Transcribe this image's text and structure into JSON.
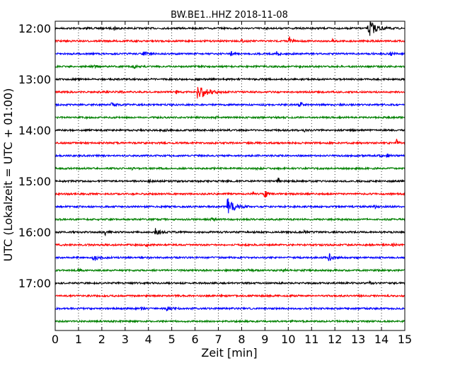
{
  "chart_data": {
    "type": "line",
    "title": "BW.BE1..HHZ 2018-11-08",
    "xlabel": "Zeit  [min]",
    "ylabel": "UTC (Lokalzeit = UTC + 01:00)",
    "xlim": [
      0,
      15
    ],
    "x_ticks": [
      0,
      1,
      2,
      3,
      4,
      5,
      6,
      7,
      8,
      9,
      10,
      11,
      12,
      13,
      14,
      15
    ],
    "grid": "vertical-dotted",
    "row_minutes": 15,
    "start": "12:00",
    "y_tick_labels": [
      "12:00",
      "13:00",
      "14:00",
      "15:00",
      "16:00",
      "17:00"
    ],
    "series_colors": [
      "#000000",
      "#ff0000",
      "#0000ff",
      "#008000"
    ],
    "rows": [
      {
        "time": "12:00",
        "color": "#000000",
        "events": [
          {
            "t": 1.3,
            "a": 0.15
          },
          {
            "t": 2.55,
            "a": 0.3
          },
          {
            "t": 13.45,
            "a": 1.0,
            "d": 0.8
          }
        ]
      },
      {
        "time": "12:15",
        "color": "#ff0000",
        "events": [
          {
            "t": 10.05,
            "a": 0.6
          },
          {
            "t": 11.9,
            "a": 0.25
          },
          {
            "t": 8.0,
            "a": 0.12
          }
        ]
      },
      {
        "time": "12:30",
        "color": "#0000ff",
        "events": [
          {
            "t": 3.8,
            "a": 0.25,
            "d": 0.4
          },
          {
            "t": 7.55,
            "a": 0.3
          },
          {
            "t": 9.5,
            "a": 0.4
          },
          {
            "t": 14.4,
            "a": 0.25
          }
        ]
      },
      {
        "time": "12:45",
        "color": "#008000",
        "events": [
          {
            "t": 1.7,
            "a": 0.15
          },
          {
            "t": 3.4,
            "a": 0.15
          },
          {
            "t": 10.5,
            "a": 0.12
          }
        ]
      },
      {
        "time": "13:00",
        "color": "#000000",
        "events": []
      },
      {
        "time": "13:15",
        "color": "#ff0000",
        "events": [
          {
            "t": 6.1,
            "a": 1.0,
            "d": 0.9
          },
          {
            "t": 5.2,
            "a": 0.2
          },
          {
            "t": 2.8,
            "a": 0.12
          }
        ]
      },
      {
        "time": "13:30",
        "color": "#0000ff",
        "events": [
          {
            "t": 10.5,
            "a": 0.6
          },
          {
            "t": 2.4,
            "a": 0.15,
            "d": 0.5
          },
          {
            "t": 9.8,
            "a": 0.12
          }
        ]
      },
      {
        "time": "13:45",
        "color": "#008000",
        "events": [
          {
            "t": 6.9,
            "a": 0.12
          },
          {
            "t": 1.3,
            "a": 0.1
          }
        ]
      },
      {
        "time": "14:00",
        "color": "#000000",
        "events": [
          {
            "t": 4.5,
            "a": 0.12,
            "d": 0.6
          },
          {
            "t": 10.7,
            "a": 0.15
          }
        ]
      },
      {
        "time": "14:15",
        "color": "#ff0000",
        "events": [
          {
            "t": 14.65,
            "a": 0.4
          }
        ]
      },
      {
        "time": "14:30",
        "color": "#0000ff",
        "events": [
          {
            "t": 14.25,
            "a": 0.3
          },
          {
            "t": 13.9,
            "a": 0.12
          }
        ]
      },
      {
        "time": "14:45",
        "color": "#008000",
        "events": [
          {
            "t": 8.6,
            "a": 0.15
          },
          {
            "t": 3.3,
            "a": 0.1
          }
        ]
      },
      {
        "time": "15:00",
        "color": "#000000",
        "events": [
          {
            "t": 9.55,
            "a": 0.55
          },
          {
            "t": 4.0,
            "a": 0.12
          }
        ]
      },
      {
        "time": "15:15",
        "color": "#ff0000",
        "events": [
          {
            "t": 9.0,
            "a": 0.7
          },
          {
            "t": 8.5,
            "a": 0.15
          }
        ]
      },
      {
        "time": "15:30",
        "color": "#0000ff",
        "events": [
          {
            "t": 7.4,
            "a": 1.0,
            "d": 0.7
          },
          {
            "t": 13.7,
            "a": 0.2
          }
        ]
      },
      {
        "time": "15:45",
        "color": "#008000",
        "events": [
          {
            "t": 6.7,
            "a": 0.45
          }
        ]
      },
      {
        "time": "16:00",
        "color": "#000000",
        "events": [
          {
            "t": 4.3,
            "a": 0.45,
            "d": 0.4
          },
          {
            "t": 2.15,
            "a": 0.25
          },
          {
            "t": 10.7,
            "a": 0.2
          }
        ]
      },
      {
        "time": "16:15",
        "color": "#ff0000",
        "events": [
          {
            "t": 3.9,
            "a": 0.2
          },
          {
            "t": 14.5,
            "a": 0.2
          }
        ]
      },
      {
        "time": "16:30",
        "color": "#0000ff",
        "events": [
          {
            "t": 1.65,
            "a": 0.55,
            "d": 0.4
          },
          {
            "t": 11.75,
            "a": 0.4,
            "d": 0.4
          }
        ]
      },
      {
        "time": "16:45",
        "color": "#008000",
        "events": [
          {
            "t": 1.0,
            "a": 0.15
          },
          {
            "t": 9.8,
            "a": 0.2
          },
          {
            "t": 8.3,
            "a": 0.1
          }
        ]
      },
      {
        "time": "17:00",
        "color": "#000000",
        "events": [
          {
            "t": 13.5,
            "a": 0.15
          }
        ]
      },
      {
        "time": "17:15",
        "color": "#ff0000",
        "events": []
      },
      {
        "time": "17:30",
        "color": "#0000ff",
        "events": [
          {
            "t": 4.8,
            "a": 0.35,
            "d": 0.4
          },
          {
            "t": 3.7,
            "a": 0.1
          }
        ]
      },
      {
        "time": "17:45",
        "color": "#008000",
        "events": [
          {
            "t": 10.1,
            "a": 0.1
          }
        ]
      }
    ]
  }
}
